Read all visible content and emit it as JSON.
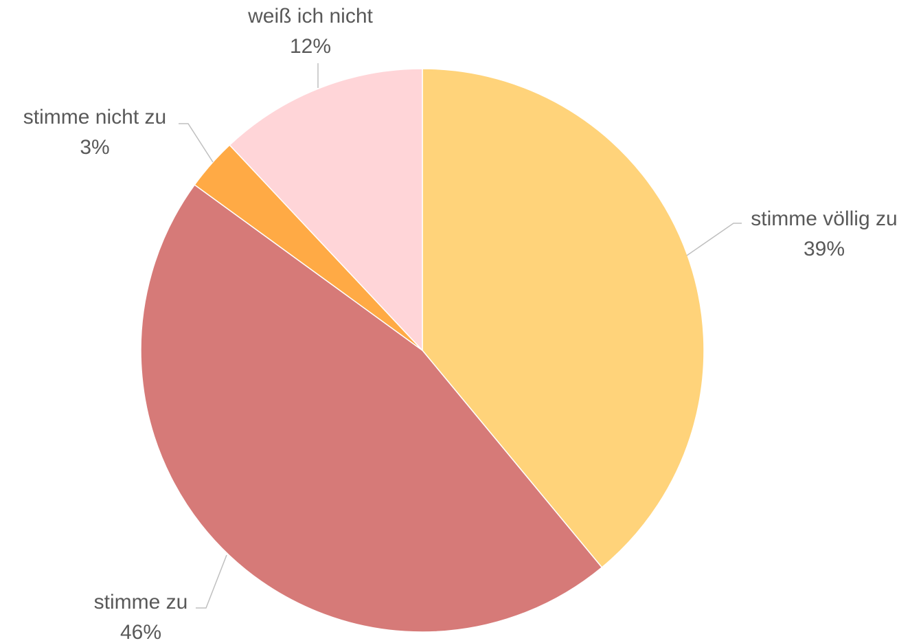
{
  "chart_data": {
    "type": "pie",
    "categories": [
      "stimme völlig zu",
      "stimme zu",
      "stimme nicht zu",
      "weiß ich nicht"
    ],
    "values": [
      39,
      46,
      3,
      12
    ],
    "value_labels": [
      "39%",
      "46%",
      "3%",
      "12%"
    ],
    "colors": [
      "#FFD37A",
      "#D67A78",
      "#FFAA45",
      "#FFD5D8"
    ]
  }
}
